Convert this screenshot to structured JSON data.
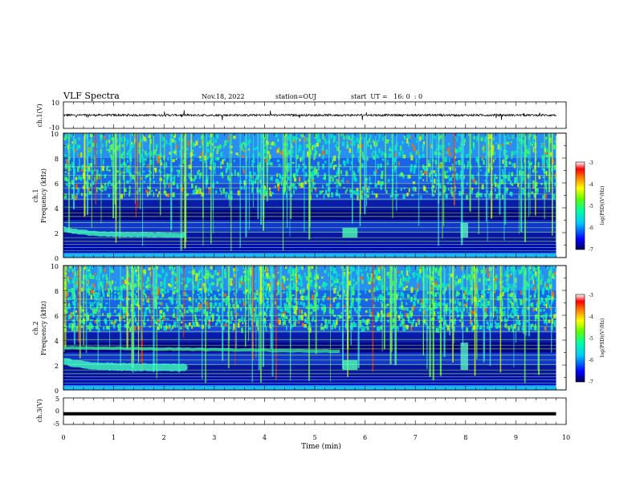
{
  "header": {
    "title": "VLF Spectra",
    "date": "Nov.18, 2022",
    "station": "station=OUJ",
    "start": "start  UT =   16: 0  : 0"
  },
  "chart_data": [
    {
      "type": "line",
      "panel": "ch1-waveform",
      "ylabel": "ch.1(V)",
      "ylim": [
        -10,
        10
      ],
      "yticks": [
        "10",
        "-10"
      ],
      "description_values": {
        "baseline": 0,
        "noise_amplitude": 1
      }
    },
    {
      "type": "heatmap",
      "panel": "ch1-spectrogram",
      "ylabel": "ch.1\nFrequency (kHz)",
      "ylabel_line1": "ch.1",
      "ylabel_line2": "Frequency (kHz)",
      "ylim": [
        0,
        10
      ],
      "yticks": [
        "0",
        "2",
        "4",
        "6",
        "8",
        "10"
      ],
      "xlim": [
        0,
        10
      ],
      "colorbar": {
        "label": "log(PSD)(V²/Hz)",
        "range": [
          -7,
          -3
        ],
        "ticks": [
          "-3",
          "-4",
          "-5",
          "-6",
          "-7"
        ]
      }
    },
    {
      "type": "heatmap",
      "panel": "ch2-spectrogram",
      "ylabel_line1": "ch.2",
      "ylabel_line2": "Frequency (kHz)",
      "ylim": [
        0,
        10
      ],
      "yticks": [
        "0",
        "2",
        "4",
        "6",
        "8",
        "10"
      ],
      "xlim": [
        0,
        10
      ],
      "colorbar": {
        "label": "log(PSD)(V²/Hz)",
        "range": [
          -7,
          -3
        ],
        "ticks": [
          "-3",
          "-4",
          "-5",
          "-6",
          "-7"
        ]
      }
    },
    {
      "type": "line",
      "panel": "ch3-waveform",
      "ylabel": "ch.3(V)",
      "ylim": [
        -5,
        5
      ],
      "yticks": [
        "5",
        "0",
        "-5"
      ],
      "value": -1,
      "x": [
        0,
        9.8
      ],
      "xlabel": "Time (min)",
      "xlim": [
        0,
        10
      ],
      "xticks": [
        "0",
        "1",
        "2",
        "3",
        "4",
        "5",
        "6",
        "7",
        "8",
        "9",
        "10"
      ]
    }
  ]
}
